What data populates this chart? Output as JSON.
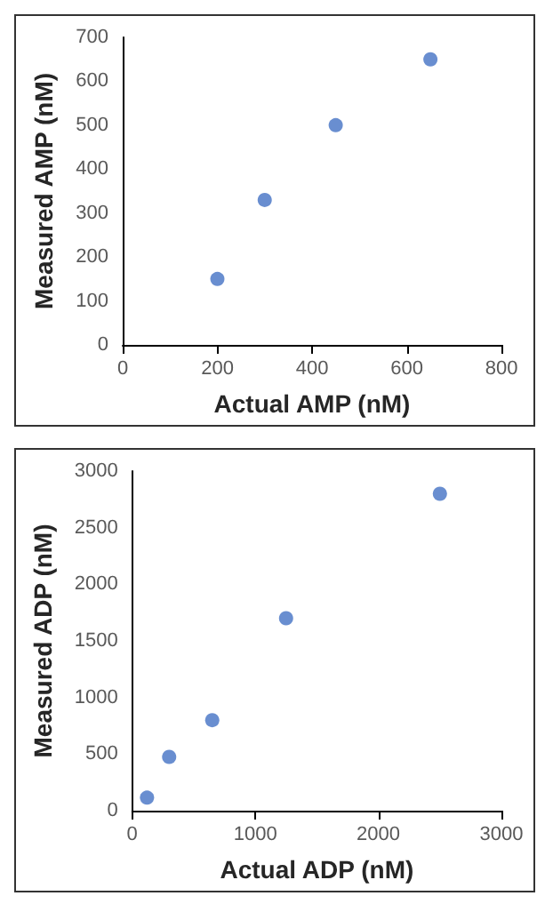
{
  "chart_data": [
    {
      "type": "scatter",
      "xlabel": "Actual AMP (nM)",
      "ylabel": "Measured AMP (nM)",
      "x": [
        200,
        300,
        450,
        650
      ],
      "series": [
        {
          "color": "#4472c4",
          "values": [
            150,
            330,
            500,
            650
          ]
        }
      ],
      "xlim": [
        0,
        800
      ],
      "xticks": [
        0,
        200,
        400,
        600,
        800
      ],
      "ylim": [
        0,
        700
      ],
      "yticks": [
        0,
        100,
        200,
        300,
        400,
        500,
        600,
        700
      ],
      "grid": false,
      "marker": "circle"
    },
    {
      "type": "scatter",
      "xlabel": "Actual ADP (nM)",
      "ylabel": "Measured ADP (nM)",
      "x": [
        120,
        300,
        650,
        1250,
        2500
      ],
      "series": [
        {
          "color": "#4472c4",
          "values": [
            115,
            475,
            800,
            1700,
            2800
          ]
        }
      ],
      "xlim": [
        0,
        3000
      ],
      "xticks": [
        0,
        1000,
        2000,
        3000
      ],
      "ylim": [
        0,
        3000
      ],
      "yticks": [
        0,
        500,
        1000,
        1500,
        2000,
        2500,
        3000
      ],
      "grid": false,
      "marker": "circle"
    }
  ]
}
